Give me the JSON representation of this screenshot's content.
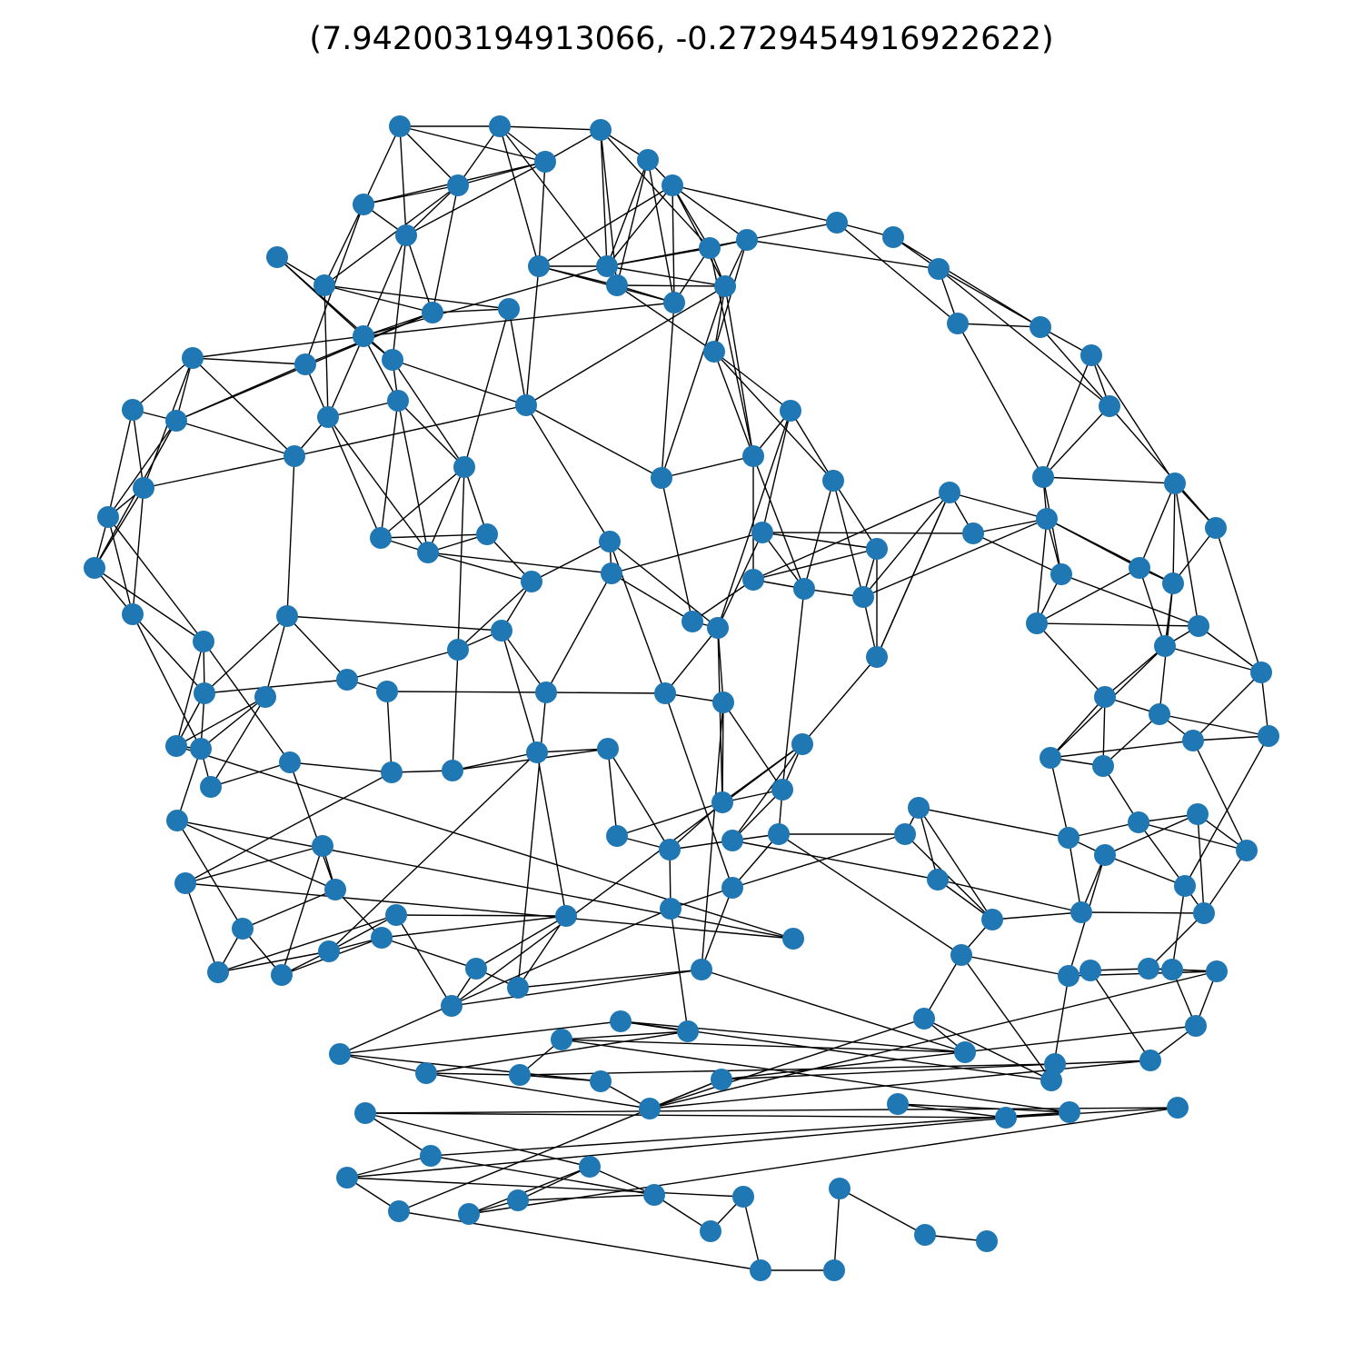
{
  "figure": {
    "title": "(7.942003194913066, -0.2729454916922622)"
  },
  "style": {
    "node_color": "#1f77b4",
    "edge_color": "#000000",
    "background": "#ffffff"
  }
}
